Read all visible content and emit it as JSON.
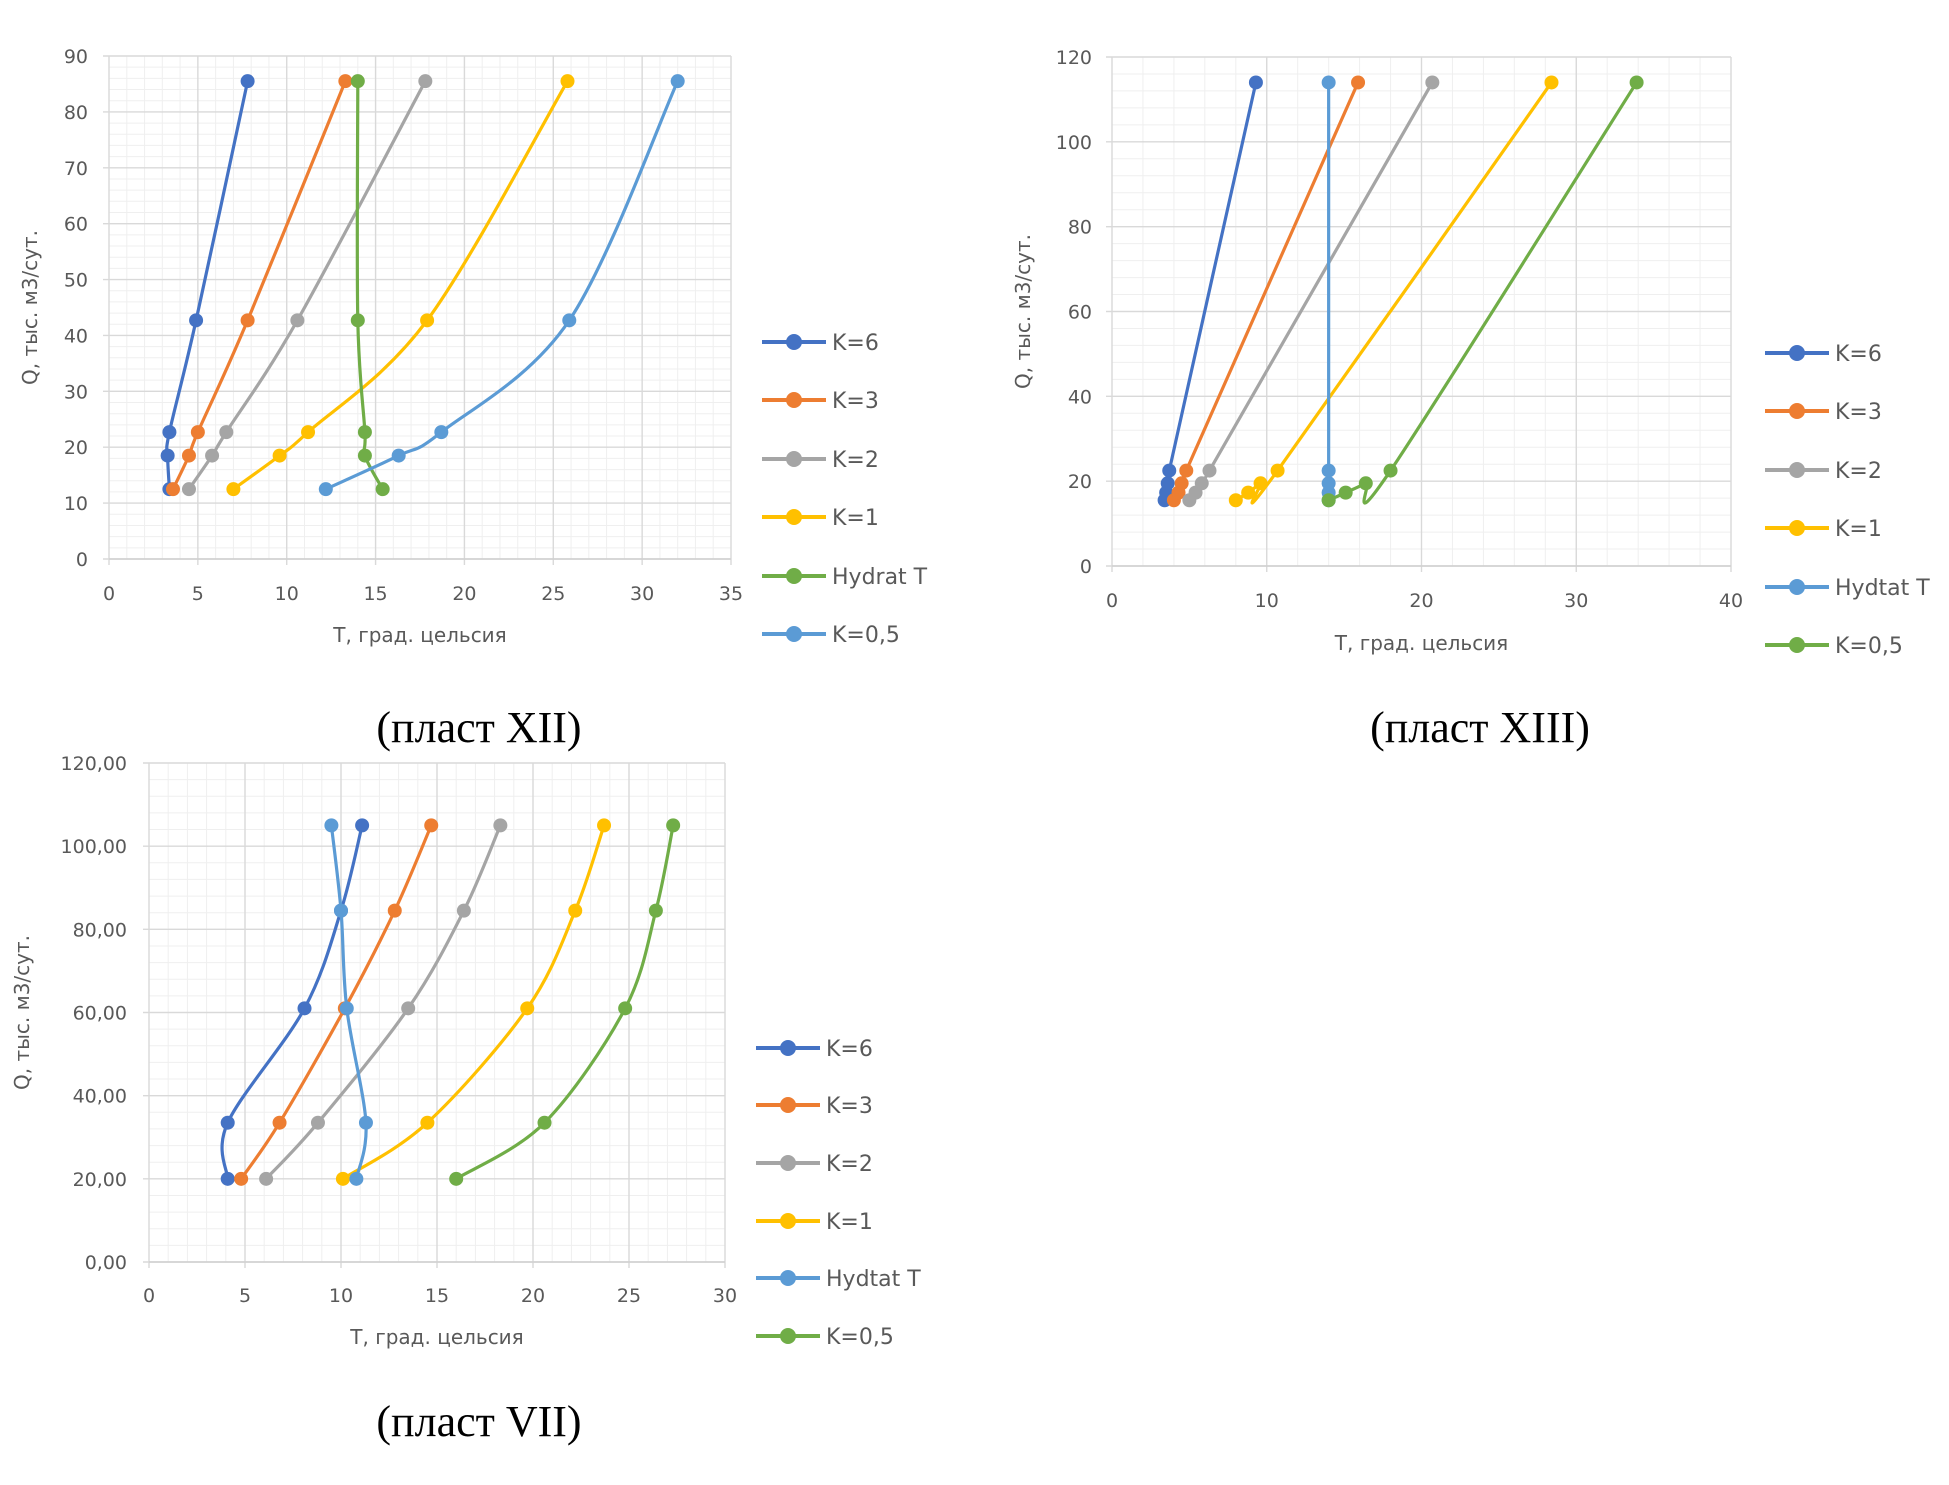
{
  "chart_data": [
    {
      "type": "line",
      "caption": "(пласт XII)",
      "xlabel": "Т, град. цельсия",
      "ylabel": "Q, тыс. м3/сут.",
      "xlim": [
        0,
        35
      ],
      "ylim": [
        0,
        90
      ],
      "x_ticks": [
        "0",
        "5",
        "10",
        "15",
        "20",
        "25",
        "30",
        "35"
      ],
      "y_ticks": [
        "0",
        "10",
        "20",
        "30",
        "40",
        "50",
        "60",
        "70",
        "80",
        "90"
      ],
      "grid": true,
      "legend_position": "right",
      "series": [
        {
          "name": "K=6",
          "color": "#4472c4",
          "points": [
            [
              3.4,
              12.5
            ],
            [
              3.3,
              18.5
            ],
            [
              3.4,
              22.7
            ],
            [
              4.9,
              42.7
            ],
            [
              7.8,
              85.5
            ]
          ]
        },
        {
          "name": "K=3",
          "color": "#ed7d31",
          "points": [
            [
              3.6,
              12.5
            ],
            [
              4.5,
              18.5
            ],
            [
              5.0,
              22.7
            ],
            [
              7.8,
              42.7
            ],
            [
              13.3,
              85.5
            ]
          ]
        },
        {
          "name": "K=2",
          "color": "#a5a5a5",
          "points": [
            [
              4.5,
              12.5
            ],
            [
              5.8,
              18.5
            ],
            [
              6.6,
              22.7
            ],
            [
              10.6,
              42.7
            ],
            [
              17.8,
              85.5
            ]
          ]
        },
        {
          "name": "K=1",
          "color": "#ffc000",
          "points": [
            [
              7.0,
              12.5
            ],
            [
              9.6,
              18.5
            ],
            [
              11.2,
              22.7
            ],
            [
              17.9,
              42.7
            ],
            [
              25.8,
              85.5
            ]
          ]
        },
        {
          "name": "Hydrat T",
          "color": "#70ad47",
          "points": [
            [
              15.4,
              12.5
            ],
            [
              14.4,
              18.5
            ],
            [
              14.4,
              22.7
            ],
            [
              14.0,
              42.7
            ],
            [
              14.0,
              85.5
            ]
          ]
        },
        {
          "name": "K=0,5",
          "color": "#5b9bd5",
          "points": [
            [
              12.2,
              12.5
            ],
            [
              16.3,
              18.5
            ],
            [
              18.7,
              22.7
            ],
            [
              25.9,
              42.7
            ],
            [
              32.0,
              85.5
            ]
          ]
        }
      ]
    },
    {
      "type": "line",
      "caption": "(пласт XIII)",
      "xlabel": "Т, град. цельсия",
      "ylabel": "Q, тыс. м3/сут.",
      "xlim": [
        0,
        40
      ],
      "ylim": [
        0,
        120
      ],
      "x_ticks": [
        "0",
        "10",
        "20",
        "30",
        "40"
      ],
      "y_ticks": [
        "0",
        "20",
        "40",
        "60",
        "80",
        "100",
        "120"
      ],
      "grid": true,
      "legend_position": "right",
      "series": [
        {
          "name": "K=6",
          "color": "#4472c4",
          "points": [
            [
              3.4,
              15.5
            ],
            [
              3.5,
              17.3
            ],
            [
              3.6,
              19.5
            ],
            [
              3.7,
              22.5
            ],
            [
              9.3,
              114
            ]
          ]
        },
        {
          "name": "K=3",
          "color": "#ed7d31",
          "points": [
            [
              4.0,
              15.5
            ],
            [
              4.3,
              17.3
            ],
            [
              4.5,
              19.5
            ],
            [
              4.8,
              22.5
            ],
            [
              15.9,
              114
            ]
          ]
        },
        {
          "name": "K=2",
          "color": "#a5a5a5",
          "points": [
            [
              5.0,
              15.5
            ],
            [
              5.4,
              17.3
            ],
            [
              5.8,
              19.5
            ],
            [
              6.3,
              22.5
            ],
            [
              20.7,
              114
            ]
          ]
        },
        {
          "name": "K=1",
          "color": "#ffc000",
          "points": [
            [
              8.0,
              15.5
            ],
            [
              8.8,
              17.3
            ],
            [
              9.6,
              19.5
            ],
            [
              10.7,
              22.5
            ],
            [
              28.4,
              114
            ]
          ]
        },
        {
          "name": "Hydtat T",
          "color": "#5b9bd5",
          "points": [
            [
              14.0,
              15.5
            ],
            [
              14.0,
              17.3
            ],
            [
              14.0,
              19.5
            ],
            [
              14.0,
              22.5
            ],
            [
              14.0,
              114
            ]
          ]
        },
        {
          "name": "K=0,5",
          "color": "#70ad47",
          "points": [
            [
              14.0,
              15.5
            ],
            [
              15.1,
              17.3
            ],
            [
              16.4,
              19.5
            ],
            [
              18.0,
              22.5
            ],
            [
              33.9,
              114
            ]
          ]
        }
      ]
    },
    {
      "type": "line",
      "caption": "(пласт VII)",
      "xlabel": "Т, град. цельсия",
      "ylabel": "Q, тыс. м3/сут.",
      "xlim": [
        0,
        30
      ],
      "ylim": [
        0,
        120
      ],
      "x_ticks": [
        "0",
        "5",
        "10",
        "15",
        "20",
        "25",
        "30"
      ],
      "y_ticks": [
        "0,00",
        "20,00",
        "40,00",
        "60,00",
        "80,00",
        "100,00",
        "120,00"
      ],
      "grid": true,
      "legend_position": "right",
      "series": [
        {
          "name": "K=6",
          "color": "#4472c4",
          "points": [
            [
              4.1,
              20
            ],
            [
              4.1,
              33.5
            ],
            [
              8.1,
              61
            ],
            [
              10.0,
              84.5
            ],
            [
              11.1,
              105
            ]
          ]
        },
        {
          "name": "K=3",
          "color": "#ed7d31",
          "points": [
            [
              4.8,
              20
            ],
            [
              6.8,
              33.5
            ],
            [
              10.2,
              61
            ],
            [
              12.8,
              84.5
            ],
            [
              14.7,
              105
            ]
          ]
        },
        {
          "name": "K=2",
          "color": "#a5a5a5",
          "points": [
            [
              6.1,
              20
            ],
            [
              8.8,
              33.5
            ],
            [
              13.5,
              61
            ],
            [
              16.4,
              84.5
            ],
            [
              18.3,
              105
            ]
          ]
        },
        {
          "name": "K=1",
          "color": "#ffc000",
          "points": [
            [
              10.1,
              20
            ],
            [
              14.5,
              33.5
            ],
            [
              19.7,
              61
            ],
            [
              22.2,
              84.5
            ],
            [
              23.7,
              105
            ]
          ]
        },
        {
          "name": "Hydtat T",
          "color": "#5b9bd5",
          "points": [
            [
              10.8,
              20
            ],
            [
              11.3,
              33.5
            ],
            [
              10.3,
              61
            ],
            [
              10.0,
              84.5
            ],
            [
              9.5,
              105
            ]
          ]
        },
        {
          "name": "K=0,5",
          "color": "#70ad47",
          "points": [
            [
              16.0,
              20
            ],
            [
              20.6,
              33.5
            ],
            [
              24.8,
              61
            ],
            [
              26.4,
              84.5
            ],
            [
              27.3,
              105
            ]
          ]
        }
      ]
    }
  ]
}
